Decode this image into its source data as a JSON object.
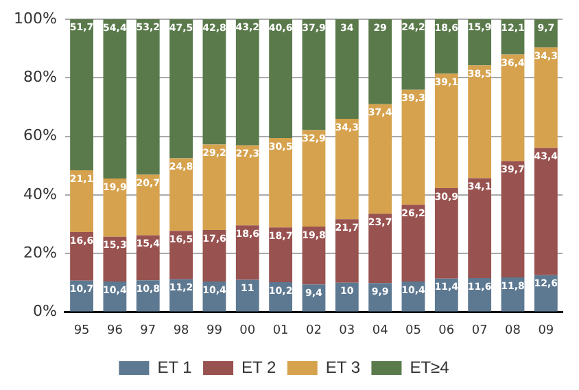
{
  "chart_data": {
    "type": "bar",
    "stacked": true,
    "categories": [
      "95",
      "96",
      "97",
      "98",
      "99",
      "00",
      "01",
      "02",
      "03",
      "04",
      "05",
      "06",
      "07",
      "08",
      "09"
    ],
    "series": [
      {
        "name": "ET 1",
        "color": "#5d7891",
        "values": [
          10.7,
          10.4,
          10.8,
          11.2,
          10.4,
          11,
          10.2,
          9.4,
          10,
          9.9,
          10.4,
          11.4,
          11.6,
          11.8,
          12.6
        ],
        "value_labels": [
          "10,7",
          "10,4",
          "10,8",
          "11,2",
          "10,4",
          "11",
          "10,2",
          "9,4",
          "10",
          "9,9",
          "10,4",
          "11,4",
          "11,6",
          "11,8",
          "12,6"
        ]
      },
      {
        "name": "ET 2",
        "color": "#98524f",
        "values": [
          16.6,
          15.3,
          15.4,
          16.5,
          17.6,
          18.6,
          18.7,
          19.8,
          21.7,
          23.7,
          26.2,
          30.9,
          34.1,
          39.7,
          43.4
        ],
        "value_labels": [
          "16,6",
          "15,3",
          "15,4",
          "16,5",
          "17,6",
          "18,6",
          "18,7",
          "19,8",
          "21,7",
          "23,7",
          "26,2",
          "30,9",
          "34,1",
          "39,7",
          "43,4"
        ]
      },
      {
        "name": "ET 3",
        "color": "#d6a24e",
        "values": [
          21.1,
          19.9,
          20.7,
          24.8,
          29.2,
          27.3,
          30.5,
          32.9,
          34.3,
          37.4,
          39.3,
          39.1,
          38.5,
          36.4,
          34.3
        ],
        "value_labels": [
          "21,1",
          "19,9",
          "20,7",
          "24,8",
          "29,2",
          "27,3",
          "30,5",
          "32,9",
          "34,3",
          "37,4",
          "39,3",
          "39,1",
          "38,5",
          "36,4",
          "34,3"
        ]
      },
      {
        "name": "ET≥4",
        "color": "#5a7a4c",
        "values": [
          51.7,
          54.4,
          53.2,
          47.5,
          42.8,
          43.2,
          40.6,
          37.9,
          34,
          29,
          24.2,
          18.6,
          15.9,
          12.1,
          9.7
        ],
        "value_labels": [
          "51,7",
          "54,4",
          "53,2",
          "47,5",
          "42,8",
          "43,2",
          "40,6",
          "37,9",
          "34",
          "29",
          "24,2",
          "18,6",
          "15,9",
          "12,1",
          "9,7"
        ]
      }
    ],
    "ylim": [
      0,
      100
    ],
    "yticks": [
      {
        "value": 0,
        "label": "0%"
      },
      {
        "value": 20,
        "label": "20%"
      },
      {
        "value": 40,
        "label": "40%"
      },
      {
        "value": 60,
        "label": "60%"
      },
      {
        "value": 80,
        "label": "80%"
      },
      {
        "value": 100,
        "label": "100%"
      }
    ],
    "grid": "y",
    "legend": "bottom"
  }
}
